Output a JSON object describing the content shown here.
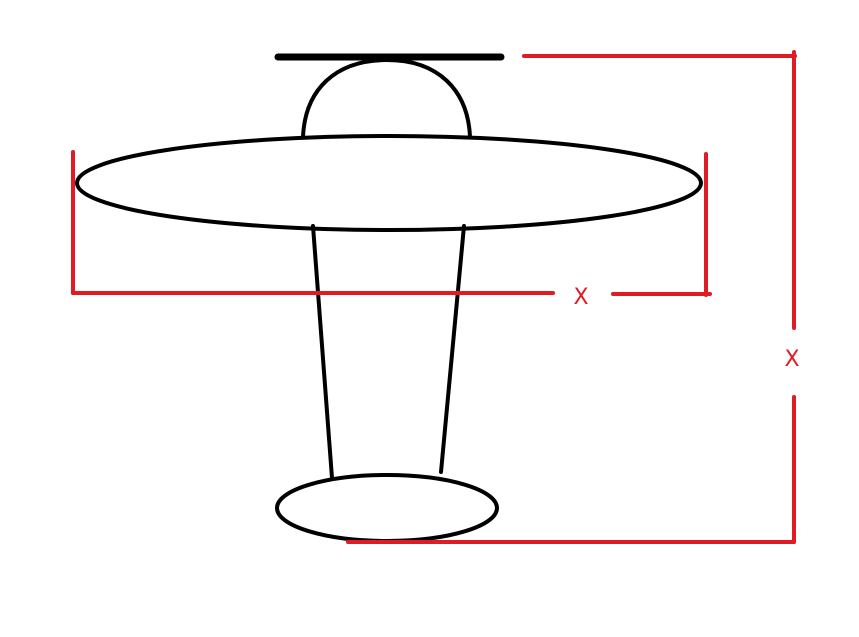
{
  "colors": {
    "background": "#ffffff",
    "drawing": "#000000",
    "dimension": "#e01b24"
  },
  "dimensions": {
    "wingspan_label": "X",
    "length_label": "X"
  }
}
